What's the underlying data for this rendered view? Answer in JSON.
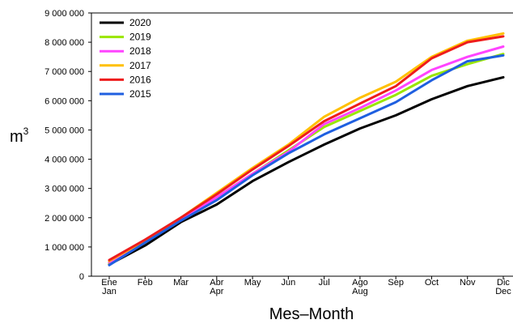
{
  "chart_data": {
    "type": "line",
    "title": "",
    "xlabel": "Mes–Month",
    "ylabel": "m",
    "ylabel_superscript": "3",
    "categories": [
      {
        "es": "Ene",
        "en": "Jan"
      },
      {
        "es": "Feb",
        "en": ""
      },
      {
        "es": "Mar",
        "en": ""
      },
      {
        "es": "Abr",
        "en": "Apr"
      },
      {
        "es": "May",
        "en": ""
      },
      {
        "es": "Jun",
        "en": ""
      },
      {
        "es": "Jul",
        "en": ""
      },
      {
        "es": "Ago",
        "en": "Aug"
      },
      {
        "es": "Sep",
        "en": ""
      },
      {
        "es": "Oct",
        "en": ""
      },
      {
        "es": "Nov",
        "en": ""
      },
      {
        "es": "Dic",
        "en": "Dec"
      }
    ],
    "ylim": [
      0,
      9000000
    ],
    "yticks": [
      0,
      1000000,
      2000000,
      3000000,
      4000000,
      5000000,
      6000000,
      7000000,
      8000000,
      9000000
    ],
    "ytick_labels": [
      "0",
      "1 000 000",
      "2 000 000",
      "3 000 000",
      "4 000 000",
      "5 000 000",
      "6 000 000",
      "7 000 000",
      "8 000 000",
      "9 000 000"
    ],
    "grid": false,
    "legend_position": "top-left",
    "series": [
      {
        "name": "2020",
        "color": "#000000",
        "values": [
          400000,
          1050000,
          1850000,
          2450000,
          3250000,
          3900000,
          4500000,
          5050000,
          5500000,
          6050000,
          6500000,
          6800000
        ]
      },
      {
        "name": "2019",
        "color": "#99e600",
        "values": [
          450000,
          1150000,
          2000000,
          2700000,
          3500000,
          4300000,
          5100000,
          5650000,
          6200000,
          6850000,
          7250000,
          7600000
        ]
      },
      {
        "name": "2018",
        "color": "#ff44ff",
        "values": [
          480000,
          1180000,
          1950000,
          2700000,
          3500000,
          4250000,
          5200000,
          5750000,
          6350000,
          7050000,
          7500000,
          7850000
        ]
      },
      {
        "name": "2017",
        "color": "#ffc000",
        "values": [
          520000,
          1220000,
          2000000,
          2850000,
          3700000,
          4500000,
          5450000,
          6100000,
          6650000,
          7500000,
          8050000,
          8300000
        ]
      },
      {
        "name": "2016",
        "color": "#ee1c1c",
        "values": [
          550000,
          1250000,
          2000000,
          2800000,
          3650000,
          4450000,
          5300000,
          5900000,
          6500000,
          7450000,
          8000000,
          8200000
        ]
      },
      {
        "name": "2015",
        "color": "#1f5fe0",
        "values": [
          380000,
          1150000,
          1900000,
          2600000,
          3450000,
          4200000,
          4850000,
          5400000,
          5950000,
          6700000,
          7350000,
          7550000
        ]
      }
    ]
  }
}
